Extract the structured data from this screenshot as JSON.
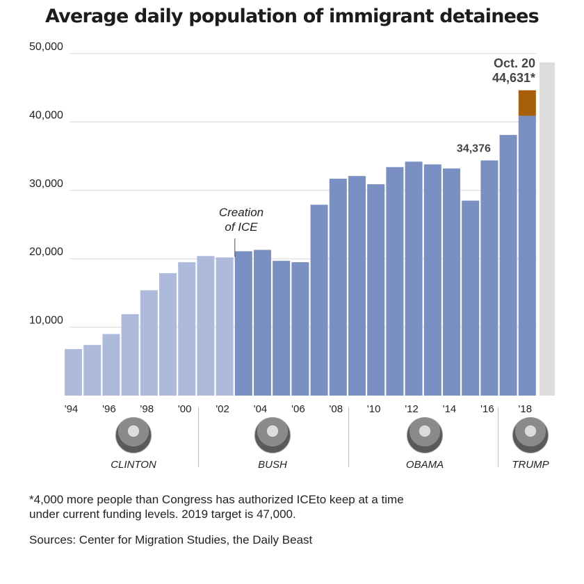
{
  "title": "Average daily population of immigrant detainees",
  "footnote_lines": [
    "*4,000 more people than Congress has authorized ICEto keep at a time",
    "under current funding levels. 2019 target is 47,000."
  ],
  "sources": "Sources: Center for Migration Studies, the Daily Beast",
  "presidents": [
    {
      "name": "CLINTON",
      "portrait": "clinton-portrait"
    },
    {
      "name": "BUSH",
      "portrait": "bush-portrait"
    },
    {
      "name": "OBAMA",
      "portrait": "obama-portrait"
    },
    {
      "name": "TRUMP",
      "portrait": "trump-portrait"
    }
  ],
  "chart_data": {
    "type": "bar",
    "title": "Average daily population of immigrant detainees",
    "xlabel": "",
    "ylabel": "",
    "ylim": [
      0,
      50000
    ],
    "yticks": [
      10000,
      20000,
      30000,
      40000,
      50000
    ],
    "ytick_labels": [
      "10,000",
      "20,000",
      "30,000",
      "40,000",
      "50,000"
    ],
    "categories": [
      "1994",
      "1995",
      "1996",
      "1997",
      "1998",
      "1999",
      "2000",
      "2001",
      "2002",
      "2003",
      "2004",
      "2005",
      "2006",
      "2007",
      "2008",
      "2009",
      "2010",
      "2011",
      "2012",
      "2013",
      "2014",
      "2015",
      "2016",
      "2017",
      "2018"
    ],
    "xtick_labels": [
      "'94",
      "'96",
      "'98",
      "'00",
      "'02",
      "'04",
      "'06",
      "'08",
      "'10",
      "'12",
      "'14",
      "'16",
      "'18"
    ],
    "values": [
      6800,
      7400,
      9000,
      11900,
      15400,
      17900,
      19500,
      20400,
      20200,
      21100,
      21300,
      19700,
      19500,
      27900,
      31700,
      32100,
      30900,
      33400,
      34200,
      33800,
      33200,
      28500,
      34376,
      38100,
      40900
    ],
    "extension": {
      "category": "2018",
      "value": 44631,
      "color": "#a85f0a"
    },
    "target_value": 48700,
    "colors": {
      "pre_ice": "#adbadb",
      "post_ice": "#7b90c2",
      "extension": "#a85f0a",
      "target": "#dcdcdc"
    },
    "grid": true,
    "annotations": [
      {
        "text_lines": [
          "Creation",
          "of ICE"
        ],
        "category": "2003"
      },
      {
        "text_lines": [
          "34,376"
        ],
        "category": "2016"
      },
      {
        "text_lines": [
          "Oct. 20",
          "44,631*"
        ],
        "category": "2018"
      }
    ]
  }
}
